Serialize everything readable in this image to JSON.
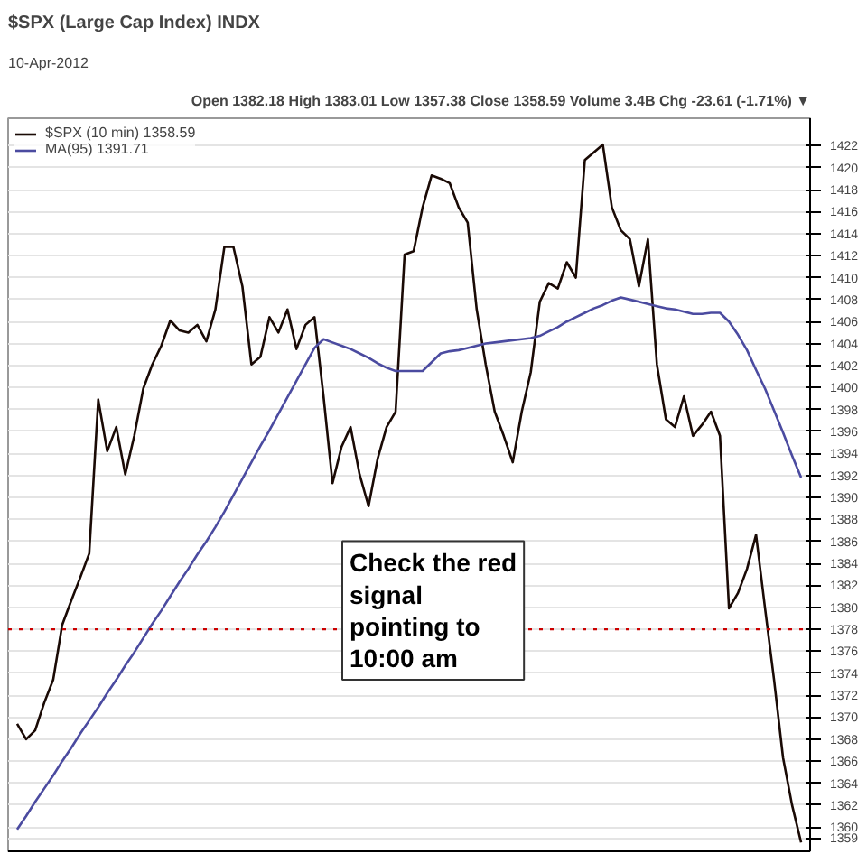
{
  "chart_data": {
    "type": "line",
    "title": "$SPX (Large Cap Index) INDX",
    "subtitle": "10-Apr-2012",
    "annotations": [
      "Open 1382.18 High 1383.01 Low 1357.38 Close 1358.59 Volume 3.4B Chg -23.61 (-1.71%) ▼",
      "Check the red\nsignal\npointing to\n10:00 am"
    ],
    "categories": [
      null,
      null,
      null,
      null,
      null,
      null,
      null,
      null,
      null,
      null,
      null,
      null,
      null,
      null,
      null,
      null,
      null,
      null,
      null,
      null,
      null,
      null,
      null,
      null,
      null,
      null,
      null,
      null,
      null,
      null,
      null,
      null,
      null,
      null,
      null,
      null,
      null,
      null,
      null,
      null,
      null,
      null,
      null,
      null,
      null,
      null,
      null,
      null,
      null,
      null,
      null,
      null,
      null,
      null,
      null,
      null,
      null,
      null,
      null,
      null,
      null,
      null,
      null,
      null,
      null,
      null,
      null,
      null,
      null,
      null,
      null,
      null,
      null,
      null,
      null,
      null,
      null,
      null,
      null,
      null,
      null,
      null,
      null,
      null,
      null,
      null,
      null,
      null
    ],
    "series": [
      {
        "name": "$SPX (10 min) 1358.59",
        "color": "#1a0a05",
        "values": [
          1369.4,
          1368.0,
          1368.8,
          1371.3,
          1373.4,
          1378.4,
          1380.6,
          1382.7,
          1384.9,
          1398.9,
          1394.2,
          1396.4,
          1392.1,
          1395.6,
          1399.9,
          1402.1,
          1403.8,
          1406.1,
          1405.2,
          1405.0,
          1405.7,
          1404.2,
          1407.1,
          1412.8,
          1412.8,
          1409.2,
          1402.1,
          1402.8,
          1406.4,
          1405.0,
          1407.1,
          1403.5,
          1405.7,
          1406.4,
          1399.2,
          1391.3,
          1394.6,
          1396.4,
          1392.1,
          1389.2,
          1393.5,
          1396.4,
          1397.8,
          1412.1,
          1412.4,
          1416.4,
          1419.3,
          1419.0,
          1418.6,
          1416.4,
          1415.0,
          1407.1,
          1402.1,
          1397.8,
          1395.6,
          1393.2,
          1397.8,
          1401.4,
          1407.8,
          1409.5,
          1409.0,
          1411.4,
          1410.0,
          1420.7,
          1421.4,
          1422.1,
          1416.4,
          1414.3,
          1413.5,
          1409.2,
          1413.5,
          1402.1,
          1397.1,
          1396.4,
          1399.2,
          1395.6,
          1396.6,
          1397.8,
          1395.6,
          1379.9,
          1381.3,
          1383.5,
          1386.6,
          1379.9,
          1373.4,
          1366.3,
          1362.0,
          1358.6
        ]
      },
      {
        "name": "MA(95) 1391.71",
        "color": "#4b4ba0",
        "values": [
          1359.8,
          1361.0,
          1362.3,
          1363.5,
          1364.7,
          1366.0,
          1367.2,
          1368.5,
          1369.7,
          1370.9,
          1372.2,
          1373.4,
          1374.7,
          1375.9,
          1377.2,
          1378.5,
          1379.7,
          1381.0,
          1382.3,
          1383.5,
          1384.8,
          1386.0,
          1387.3,
          1388.7,
          1390.2,
          1391.7,
          1393.2,
          1394.7,
          1396.1,
          1397.6,
          1399.1,
          1400.6,
          1402.1,
          1403.6,
          1404.4,
          1404.1,
          1403.8,
          1403.5,
          1403.1,
          1402.7,
          1402.2,
          1401.8,
          1401.5,
          1401.5,
          1401.5,
          1401.5,
          1402.3,
          1403.1,
          1403.3,
          1403.4,
          1403.6,
          1403.8,
          1404.0,
          1404.1,
          1404.2,
          1404.3,
          1404.4,
          1404.5,
          1404.7,
          1405.1,
          1405.5,
          1406.0,
          1406.4,
          1406.8,
          1407.2,
          1407.5,
          1407.9,
          1408.2,
          1408.0,
          1407.8,
          1407.6,
          1407.4,
          1407.2,
          1407.1,
          1406.9,
          1406.7,
          1406.7,
          1406.8,
          1406.8,
          1406.0,
          1404.8,
          1403.4,
          1401.6,
          1399.9,
          1397.9,
          1395.9,
          1393.8,
          1391.8
        ]
      }
    ],
    "ylim": [
      1357.8,
      1424.5
    ],
    "yticks": [
      1359,
      1360,
      1362,
      1364,
      1366,
      1368,
      1370,
      1372,
      1374,
      1376,
      1378,
      1380,
      1382,
      1384,
      1386,
      1388,
      1390,
      1392,
      1394,
      1396,
      1398,
      1400,
      1402,
      1404,
      1406,
      1408,
      1410,
      1412,
      1414,
      1416,
      1418,
      1420,
      1422
    ],
    "ref_lines": [
      {
        "axis": "y",
        "value": 1378,
        "color": "#cc0000",
        "line_style": "dotted"
      }
    ],
    "grid": "y",
    "legend": "top left",
    "tick_labels": "y",
    "line_style": "solid"
  }
}
